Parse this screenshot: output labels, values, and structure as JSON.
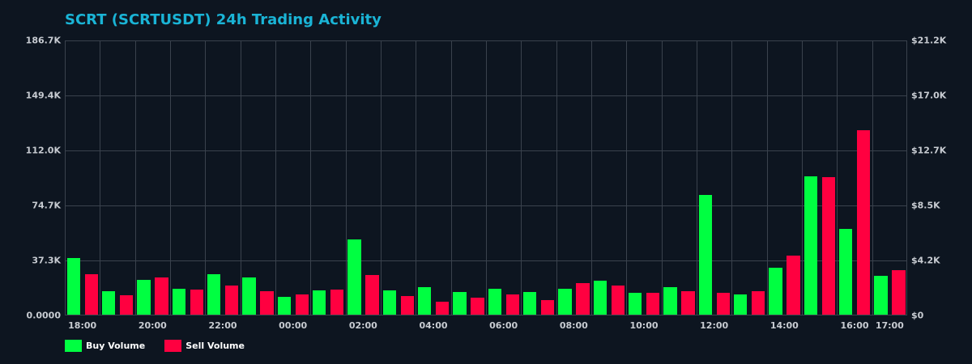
{
  "chart_data": {
    "type": "bar",
    "title": "SCRT (SCRTUSDT) 24h Trading Activity",
    "xlabel": "",
    "ylabel": "",
    "categories": [
      "18:00",
      "19:00",
      "20:00",
      "21:00",
      "22:00",
      "23:00",
      "00:00",
      "01:00",
      "02:00",
      "03:00",
      "04:00",
      "05:00",
      "06:00",
      "07:00",
      "08:00",
      "09:00",
      "10:00",
      "11:00",
      "12:00",
      "13:00",
      "14:00",
      "15:00",
      "16:00",
      "17:00"
    ],
    "x_tick_labels": [
      "18:00",
      "20:00",
      "22:00",
      "00:00",
      "02:00",
      "04:00",
      "06:00",
      "08:00",
      "10:00",
      "12:00",
      "14:00",
      "16:00",
      "17:00"
    ],
    "series": [
      {
        "name": "Buy Volume",
        "color": "#00ff41",
        "values": [
          38400,
          15900,
          23600,
          17600,
          27500,
          25300,
          12100,
          16500,
          51100,
          16500,
          18700,
          15400,
          17600,
          15400,
          17600,
          23100,
          14800,
          18700,
          81300,
          13700,
          31800,
          93900,
          58200,
          26400
        ]
      },
      {
        "name": "Sell Volume",
        "color": "#ff0040",
        "values": [
          27500,
          13200,
          25300,
          17000,
          19800,
          15900,
          13700,
          17000,
          26900,
          12600,
          8800,
          11500,
          13700,
          9900,
          21400,
          19800,
          14800,
          15900,
          14800,
          15900,
          40100,
          93400,
          125200,
          30200
        ]
      }
    ],
    "ylim": [
      0,
      186700
    ],
    "y_tick_labels_left": [
      "0.0000",
      "37.3K",
      "74.7K",
      "112.0K",
      "149.4K",
      "186.7K"
    ],
    "y_tick_labels_right": [
      "$0",
      "$4.2K",
      "$8.5K",
      "$12.7K",
      "$17.0K",
      "$21.2K"
    ],
    "y2lim": [
      0,
      21200
    ],
    "grid": true,
    "legend_position": "bottom-left"
  },
  "header": {
    "title": "SCRT (SCRTUSDT) 24h Trading Activity"
  },
  "legend": {
    "buy_label": "Buy Volume",
    "sell_label": "Sell Volume"
  },
  "colors": {
    "background": "#0d1520",
    "title": "#1ab4d6",
    "buy": "#00ff41",
    "sell": "#ff0040",
    "grid": "#3a424d",
    "tick_text": "#c8ccd2"
  }
}
